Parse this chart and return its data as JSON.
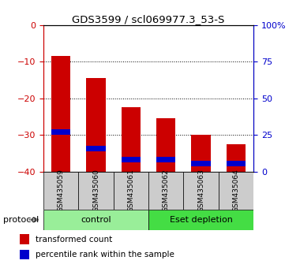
{
  "title": "GDS3599 / scl069977.3_53-S",
  "categories": [
    "GSM435059",
    "GSM435060",
    "GSM435061",
    "GSM435062",
    "GSM435063",
    "GSM435064"
  ],
  "red_top": [
    -8.5,
    -14.5,
    -22.5,
    -25.5,
    -30.0,
    -32.5
  ],
  "blue_top": [
    -28.5,
    -33.0,
    -36.0,
    -36.0,
    -37.0,
    -37.0
  ],
  "blue_bottom": [
    -30.0,
    -34.5,
    -37.5,
    -37.5,
    -38.5,
    -38.5
  ],
  "groups": [
    {
      "label": "control",
      "start": 0,
      "end": 3,
      "color": "#99ee99"
    },
    {
      "label": "Eset depletion",
      "start": 3,
      "end": 6,
      "color": "#44dd44"
    }
  ],
  "protocol_label": "protocol",
  "legend_red": "transformed count",
  "legend_blue": "percentile rank within the sample",
  "bar_width": 0.55,
  "left_axis_color": "#cc0000",
  "right_axis_color": "#0000cc",
  "bar_color_red": "#cc0000",
  "bar_color_blue": "#0000cc",
  "sample_box_color": "#cccccc"
}
